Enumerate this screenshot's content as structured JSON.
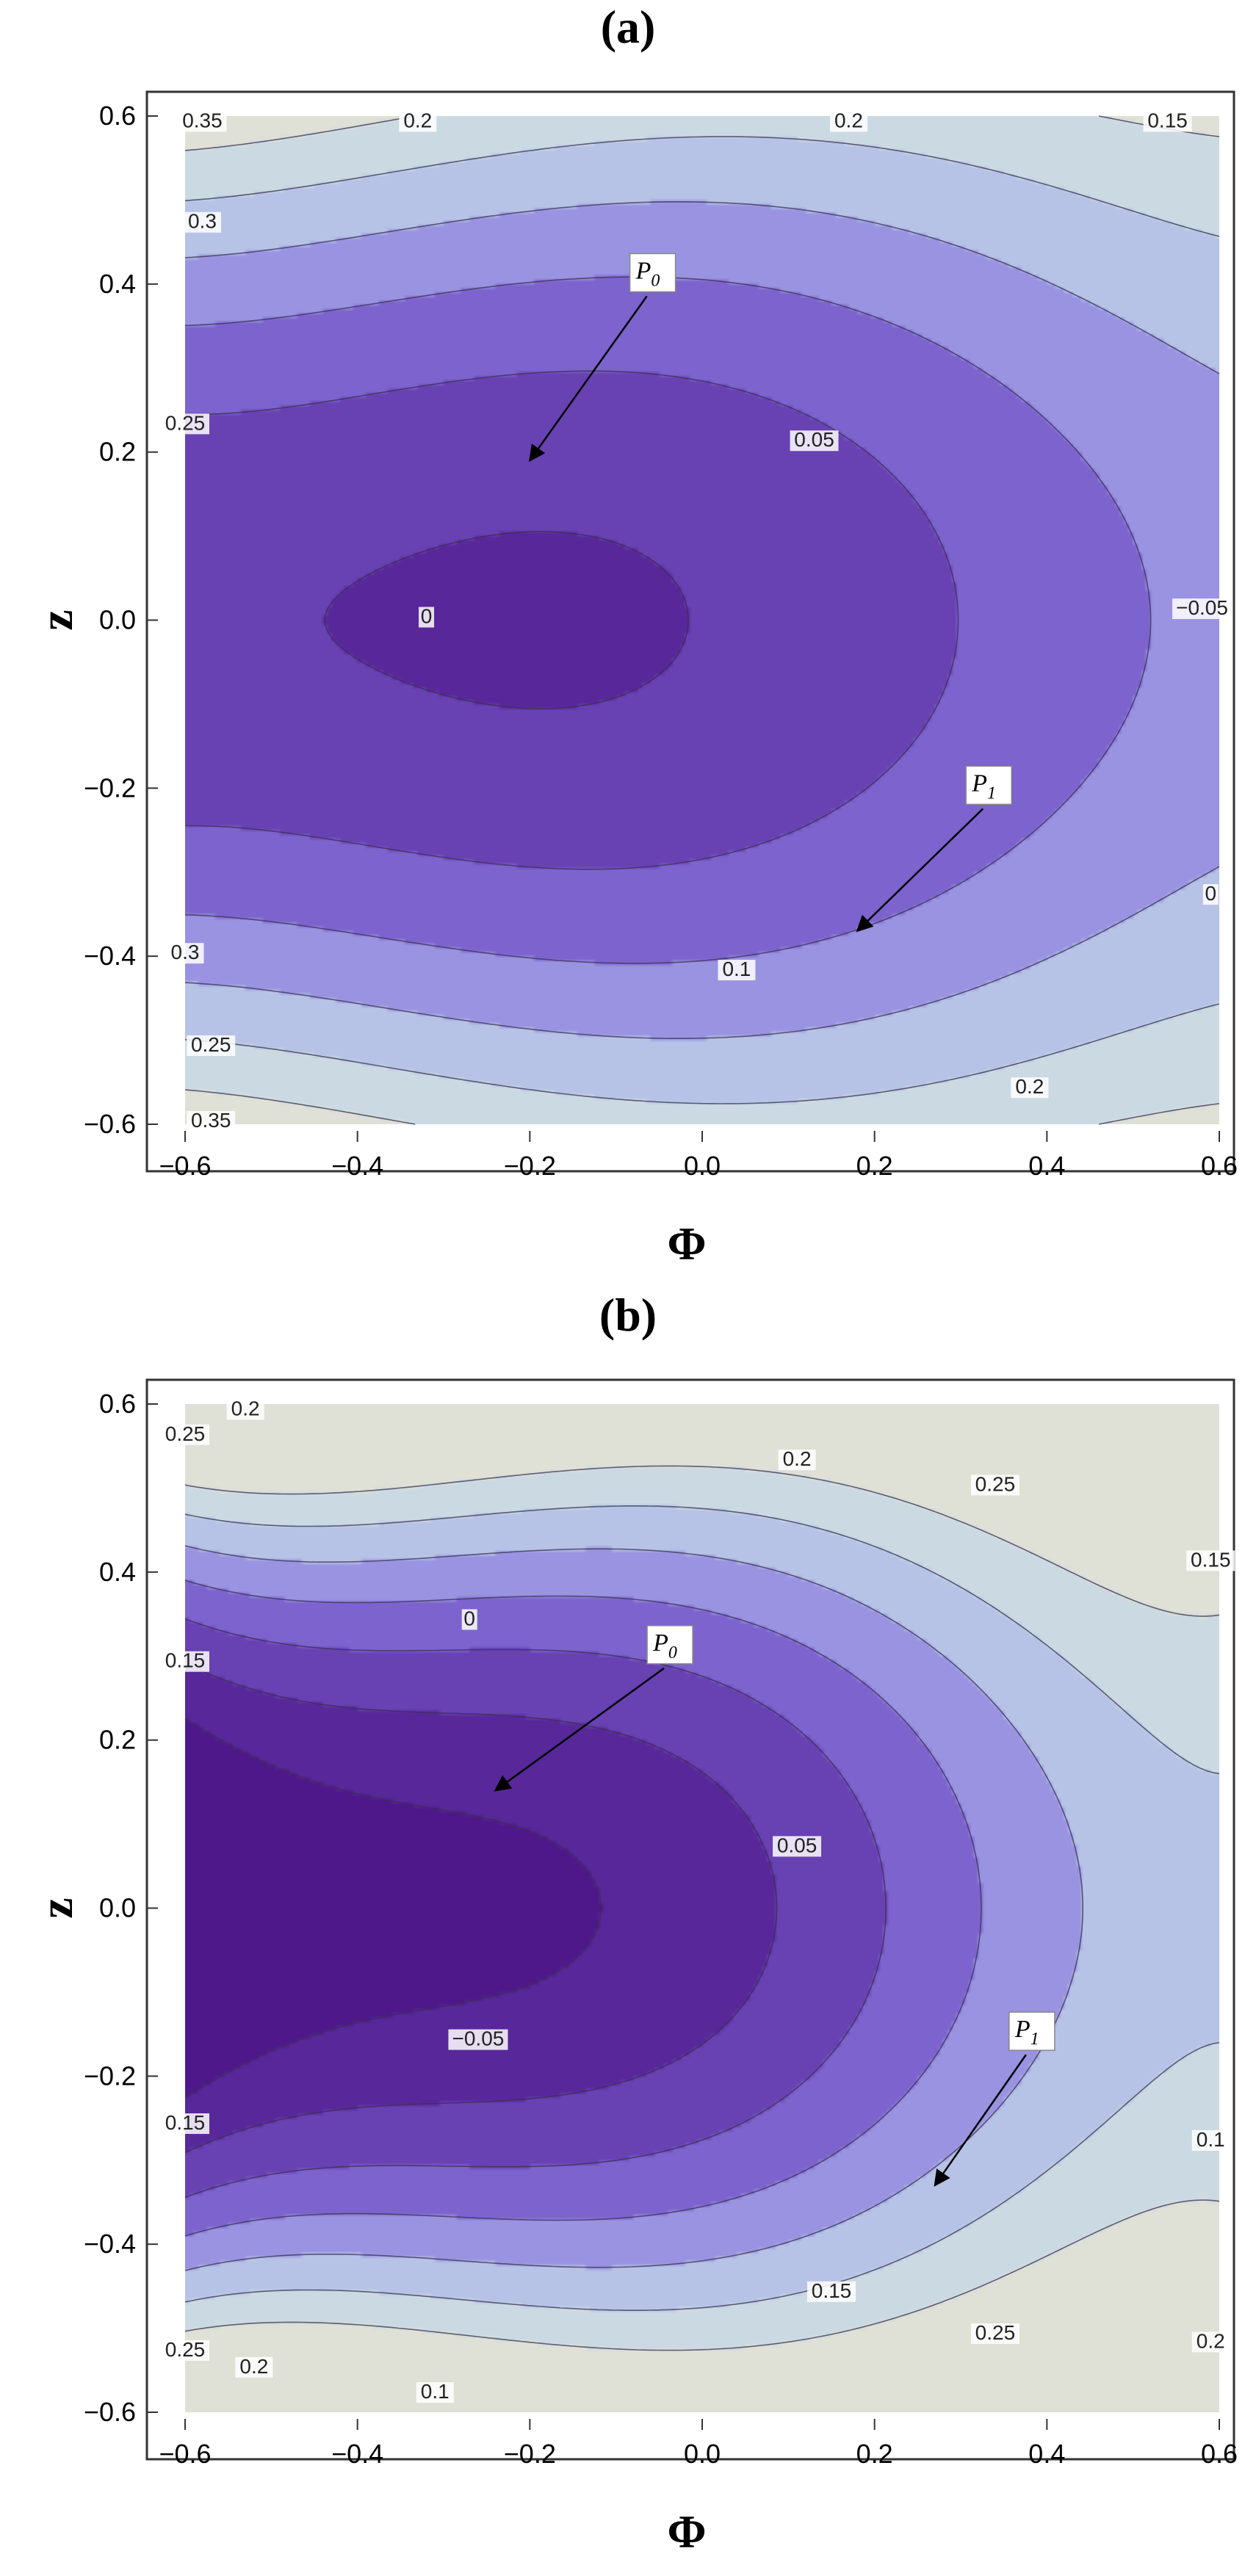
{
  "chart_data": [
    {
      "type": "contour",
      "title": "(a)",
      "xlabel": "Φ",
      "ylabel": "z",
      "xlim": [
        -0.6,
        0.6
      ],
      "ylim": [
        -0.6,
        0.6
      ],
      "xticks": [
        "−0.6",
        "−0.4",
        "−0.2",
        "0.0",
        "0.2",
        "0.4",
        "0.6"
      ],
      "yticks": [
        "0.6",
        "0.4",
        "0.2",
        "0.0",
        "−0.2",
        "−0.4",
        "−0.6"
      ],
      "levels": [
        -0.05,
        0,
        0.05,
        0.1,
        0.15,
        0.2,
        0.25,
        0.3,
        0.35
      ],
      "contour_labels": [
        {
          "text": "0.35",
          "x": -0.58,
          "y": 0.59
        },
        {
          "text": "0.2",
          "x": -0.33,
          "y": 0.59
        },
        {
          "text": "0.2",
          "x": 0.17,
          "y": 0.59
        },
        {
          "text": "0.15",
          "x": 0.54,
          "y": 0.59
        },
        {
          "text": "0.3",
          "x": -0.58,
          "y": 0.47
        },
        {
          "text": "0.25",
          "x": -0.6,
          "y": 0.23
        },
        {
          "text": "0.05",
          "x": 0.13,
          "y": 0.21
        },
        {
          "text": "0",
          "x": -0.32,
          "y": 0.0
        },
        {
          "text": "−0.05",
          "x": 0.58,
          "y": 0.01
        },
        {
          "text": "0",
          "x": 0.59,
          "y": -0.33
        },
        {
          "text": "0.1",
          "x": 0.04,
          "y": -0.42
        },
        {
          "text": "0.3",
          "x": -0.6,
          "y": -0.4
        },
        {
          "text": "0.25",
          "x": -0.57,
          "y": -0.51
        },
        {
          "text": "0.2",
          "x": 0.38,
          "y": -0.56
        },
        {
          "text": "0.35",
          "x": -0.57,
          "y": -0.6
        }
      ],
      "points": [
        {
          "name": "P",
          "sub": "0",
          "text_x": -0.06,
          "text_y": 0.41,
          "arrow_to": [
            -0.2,
            0.19
          ]
        },
        {
          "name": "P",
          "sub": "1",
          "text_x": 0.33,
          "text_y": -0.2,
          "arrow_to": [
            0.18,
            -0.37
          ]
        }
      ]
    },
    {
      "type": "contour",
      "title": "(b)",
      "xlabel": "Φ",
      "ylabel": "z",
      "xlim": [
        -0.6,
        0.6
      ],
      "ylim": [
        -0.6,
        0.6
      ],
      "xticks": [
        "−0.6",
        "−0.4",
        "−0.2",
        "0.0",
        "0.2",
        "0.4",
        "0.6"
      ],
      "yticks": [
        "0.6",
        "0.4",
        "0.2",
        "0.0",
        "−0.2",
        "−0.4",
        "−0.6"
      ],
      "levels": [
        -0.05,
        0,
        0.05,
        0.1,
        0.15,
        0.2,
        0.25
      ],
      "contour_labels": [
        {
          "text": "0.2",
          "x": -0.53,
          "y": 0.59
        },
        {
          "text": "0.25",
          "x": -0.6,
          "y": 0.56
        },
        {
          "text": "0.2",
          "x": 0.11,
          "y": 0.53
        },
        {
          "text": "0.25",
          "x": 0.34,
          "y": 0.5
        },
        {
          "text": "0.15",
          "x": 0.59,
          "y": 0.41
        },
        {
          "text": "0",
          "x": -0.27,
          "y": 0.34
        },
        {
          "text": "0.15",
          "x": -0.6,
          "y": 0.29
        },
        {
          "text": "0.05",
          "x": 0.11,
          "y": 0.07
        },
        {
          "text": "−0.05",
          "x": -0.26,
          "y": -0.16
        },
        {
          "text": "0.15",
          "x": -0.6,
          "y": -0.26
        },
        {
          "text": "0.1",
          "x": 0.59,
          "y": -0.28
        },
        {
          "text": "0.15",
          "x": 0.15,
          "y": -0.46
        },
        {
          "text": "0.25",
          "x": -0.6,
          "y": -0.53
        },
        {
          "text": "0.2",
          "x": -0.52,
          "y": -0.55
        },
        {
          "text": "0.25",
          "x": 0.34,
          "y": -0.51
        },
        {
          "text": "0.2",
          "x": 0.59,
          "y": -0.52
        },
        {
          "text": "0.1",
          "x": -0.31,
          "y": -0.58
        }
      ],
      "points": [
        {
          "name": "P",
          "sub": "0",
          "text_x": -0.04,
          "text_y": 0.31,
          "arrow_to": [
            -0.24,
            0.14
          ]
        },
        {
          "name": "P",
          "sub": "1",
          "text_x": 0.38,
          "text_y": -0.15,
          "arrow_to": [
            0.27,
            -0.33
          ]
        }
      ]
    }
  ]
}
